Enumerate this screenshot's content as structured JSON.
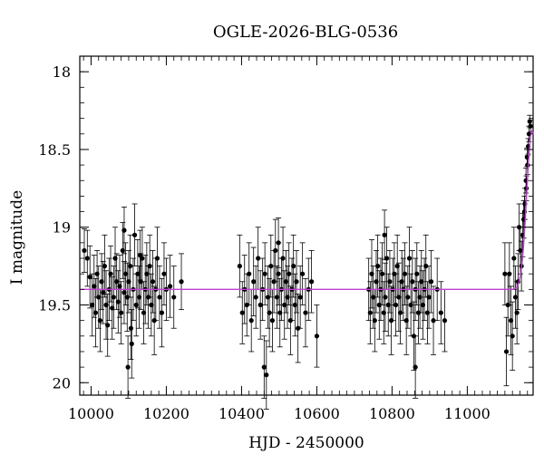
{
  "chart_data": {
    "type": "scatter",
    "title": "OGLE-2026-BLG-0536",
    "xlabel": "HJD - 2450000",
    "ylabel": "I magnitude",
    "xlim": [
      9970,
      11175
    ],
    "ylim": [
      20.08,
      17.9
    ],
    "y_inverted": true,
    "xticks": [
      10000,
      10200,
      10400,
      10600,
      10800,
      11000
    ],
    "xtick_labels": [
      "10000",
      "10200",
      "10400",
      "10600",
      "10800",
      "11000"
    ],
    "yticks": [
      18,
      18.5,
      19,
      19.5,
      20
    ],
    "ytick_labels": [
      "18",
      "18.5",
      "19",
      "19.5",
      "20"
    ],
    "grid": false,
    "legend": "none",
    "series": [
      {
        "kind": "points_with_errorbars",
        "color": "#000000",
        "points": [
          [
            9982,
            19.15,
            0.14
          ],
          [
            9990,
            19.2,
            0.18
          ],
          [
            9997,
            19.32,
            0.2
          ],
          [
            10003,
            19.5,
            0.2
          ],
          [
            10008,
            19.38,
            0.2
          ],
          [
            10012,
            19.55,
            0.22
          ],
          [
            10016,
            19.3,
            0.15
          ],
          [
            10020,
            19.45,
            0.2
          ],
          [
            10024,
            19.6,
            0.2
          ],
          [
            10028,
            19.35,
            0.18
          ],
          [
            10032,
            19.42,
            0.2
          ],
          [
            10036,
            19.25,
            0.2
          ],
          [
            10040,
            19.5,
            0.22
          ],
          [
            10044,
            19.63,
            0.2
          ],
          [
            10048,
            19.4,
            0.2
          ],
          [
            10052,
            19.3,
            0.18
          ],
          [
            10056,
            19.52,
            0.2
          ],
          [
            10060,
            19.45,
            0.2
          ],
          [
            10064,
            19.2,
            0.2
          ],
          [
            10068,
            19.35,
            0.18
          ],
          [
            10072,
            19.48,
            0.2
          ],
          [
            10076,
            19.38,
            0.2
          ],
          [
            10080,
            19.55,
            0.2
          ],
          [
            10084,
            19.15,
            0.18
          ],
          [
            10088,
            19.42,
            0.2
          ],
          [
            10092,
            19.3,
            0.2
          ],
          [
            10096,
            19.45,
            0.22
          ],
          [
            10100,
            19.35,
            0.2
          ],
          [
            10104,
            19.25,
            0.2
          ],
          [
            10108,
            19.75,
            0.22
          ],
          [
            10112,
            19.4,
            0.2
          ],
          [
            10116,
            19.05,
            0.2
          ],
          [
            10120,
            19.5,
            0.2
          ],
          [
            10124,
            19.3,
            0.22
          ],
          [
            10128,
            19.45,
            0.2
          ],
          [
            10132,
            19.35,
            0.18
          ],
          [
            10136,
            19.2,
            0.2
          ],
          [
            10140,
            19.55,
            0.2
          ],
          [
            10144,
            19.4,
            0.22
          ],
          [
            10148,
            19.3,
            0.2
          ],
          [
            10152,
            19.45,
            0.2
          ],
          [
            10156,
            19.25,
            0.2
          ],
          [
            10160,
            19.5,
            0.2
          ],
          [
            10164,
            19.35,
            0.2
          ],
          [
            10168,
            19.6,
            0.22
          ],
          [
            10172,
            19.4,
            0.2
          ],
          [
            10176,
            19.2,
            0.2
          ],
          [
            10182,
            19.45,
            0.2
          ],
          [
            10188,
            19.55,
            0.22
          ],
          [
            10194,
            19.3,
            0.2
          ],
          [
            10200,
            19.4,
            0.2
          ],
          [
            10210,
            19.38,
            0.2
          ],
          [
            10220,
            19.45,
            0.2
          ],
          [
            10240,
            19.35,
            0.18
          ],
          [
            10098,
            19.9,
            0.2
          ],
          [
            10106,
            19.65,
            0.2
          ],
          [
            10088,
            19.02,
            0.15
          ],
          [
            10130,
            19.18,
            0.16
          ],
          [
            10395,
            19.25,
            0.2
          ],
          [
            10402,
            19.55,
            0.2
          ],
          [
            10408,
            19.4,
            0.22
          ],
          [
            10414,
            19.5,
            0.2
          ],
          [
            10420,
            19.3,
            0.2
          ],
          [
            10426,
            19.6,
            0.2
          ],
          [
            10432,
            19.35,
            0.22
          ],
          [
            10438,
            19.45,
            0.2
          ],
          [
            10444,
            19.2,
            0.2
          ],
          [
            10450,
            19.5,
            0.22
          ],
          [
            10456,
            19.4,
            0.2
          ],
          [
            10462,
            19.3,
            0.2
          ],
          [
            10466,
            19.95,
            0.22
          ],
          [
            10470,
            19.45,
            0.2
          ],
          [
            10474,
            19.55,
            0.22
          ],
          [
            10478,
            19.25,
            0.2
          ],
          [
            10482,
            19.6,
            0.2
          ],
          [
            10486,
            19.35,
            0.2
          ],
          [
            10490,
            19.15,
            0.2
          ],
          [
            10494,
            19.45,
            0.2
          ],
          [
            10498,
            19.3,
            0.2
          ],
          [
            10502,
            19.55,
            0.22
          ],
          [
            10506,
            19.4,
            0.2
          ],
          [
            10510,
            19.2,
            0.2
          ],
          [
            10514,
            19.5,
            0.22
          ],
          [
            10518,
            19.35,
            0.2
          ],
          [
            10522,
            19.45,
            0.2
          ],
          [
            10526,
            19.3,
            0.2
          ],
          [
            10530,
            19.6,
            0.22
          ],
          [
            10534,
            19.4,
            0.2
          ],
          [
            10538,
            19.25,
            0.2
          ],
          [
            10542,
            19.5,
            0.2
          ],
          [
            10546,
            19.35,
            0.2
          ],
          [
            10550,
            19.65,
            0.22
          ],
          [
            10556,
            19.45,
            0.2
          ],
          [
            10562,
            19.3,
            0.2
          ],
          [
            10570,
            19.55,
            0.22
          ],
          [
            10578,
            19.4,
            0.2
          ],
          [
            10586,
            19.35,
            0.2
          ],
          [
            10600,
            19.7,
            0.2
          ],
          [
            10460,
            19.9,
            0.2
          ],
          [
            10498,
            19.1,
            0.16
          ],
          [
            10738,
            19.4,
            0.2
          ],
          [
            10742,
            19.55,
            0.2
          ],
          [
            10746,
            19.3,
            0.22
          ],
          [
            10750,
            19.45,
            0.2
          ],
          [
            10754,
            19.6,
            0.2
          ],
          [
            10758,
            19.35,
            0.2
          ],
          [
            10762,
            19.25,
            0.2
          ],
          [
            10766,
            19.5,
            0.22
          ],
          [
            10770,
            19.4,
            0.2
          ],
          [
            10774,
            19.3,
            0.2
          ],
          [
            10778,
            19.55,
            0.2
          ],
          [
            10782,
            19.45,
            0.22
          ],
          [
            10786,
            19.2,
            0.2
          ],
          [
            10790,
            19.5,
            0.2
          ],
          [
            10794,
            19.35,
            0.2
          ],
          [
            10798,
            19.6,
            0.22
          ],
          [
            10802,
            19.4,
            0.2
          ],
          [
            10806,
            19.3,
            0.2
          ],
          [
            10810,
            19.5,
            0.2
          ],
          [
            10814,
            19.25,
            0.2
          ],
          [
            10818,
            19.45,
            0.22
          ],
          [
            10822,
            19.55,
            0.2
          ],
          [
            10826,
            19.35,
            0.2
          ],
          [
            10830,
            19.4,
            0.2
          ],
          [
            10834,
            19.3,
            0.2
          ],
          [
            10838,
            19.6,
            0.22
          ],
          [
            10842,
            19.45,
            0.2
          ],
          [
            10846,
            19.2,
            0.2
          ],
          [
            10850,
            19.5,
            0.2
          ],
          [
            10854,
            19.35,
            0.2
          ],
          [
            10858,
            19.7,
            0.22
          ],
          [
            10862,
            19.4,
            0.2
          ],
          [
            10866,
            19.3,
            0.2
          ],
          [
            10870,
            19.55,
            0.2
          ],
          [
            10874,
            19.45,
            0.2
          ],
          [
            10878,
            19.35,
            0.2
          ],
          [
            10882,
            19.5,
            0.22
          ],
          [
            10886,
            19.4,
            0.2
          ],
          [
            10890,
            19.25,
            0.2
          ],
          [
            10894,
            19.55,
            0.2
          ],
          [
            10898,
            19.45,
            0.2
          ],
          [
            10904,
            19.35,
            0.2
          ],
          [
            10910,
            19.6,
            0.22
          ],
          [
            10920,
            19.4,
            0.2
          ],
          [
            10930,
            19.55,
            0.2
          ],
          [
            10940,
            19.6,
            0.2
          ],
          [
            10780,
            19.05,
            0.16
          ],
          [
            10862,
            19.9,
            0.2
          ],
          [
            11100,
            19.3,
            0.2
          ],
          [
            11104,
            19.8,
            0.22
          ],
          [
            11108,
            19.5,
            0.2
          ],
          [
            11112,
            19.3,
            0.2
          ],
          [
            11116,
            19.6,
            0.22
          ],
          [
            11120,
            19.7,
            0.22
          ],
          [
            11124,
            19.2,
            0.2
          ],
          [
            11128,
            19.45,
            0.2
          ],
          [
            11132,
            19.55,
            0.2
          ],
          [
            11135,
            19.35,
            0.18
          ],
          [
            11138,
            19.0,
            0.15
          ],
          [
            11141,
            19.15,
            0.15
          ],
          [
            11144,
            19.25,
            0.16
          ],
          [
            11147,
            19.05,
            0.14
          ],
          [
            11150,
            18.95,
            0.12
          ],
          [
            11153,
            18.85,
            0.1
          ],
          [
            11156,
            18.7,
            0.08
          ],
          [
            11159,
            18.55,
            0.06
          ],
          [
            11162,
            18.48,
            0.05
          ],
          [
            11164,
            18.4,
            0.05
          ],
          [
            11166,
            18.32,
            0.04
          ],
          [
            11168,
            18.35,
            0.04
          ],
          [
            11160,
            18.6,
            0.06
          ],
          [
            11157,
            18.75,
            0.08
          ],
          [
            11152,
            18.9,
            0.1
          ]
        ]
      },
      {
        "kind": "model_curve",
        "color": "#c040d0",
        "baseline": 19.4,
        "peak_x": 11172,
        "peak_mag": 18.38,
        "width_days": 14
      }
    ]
  }
}
